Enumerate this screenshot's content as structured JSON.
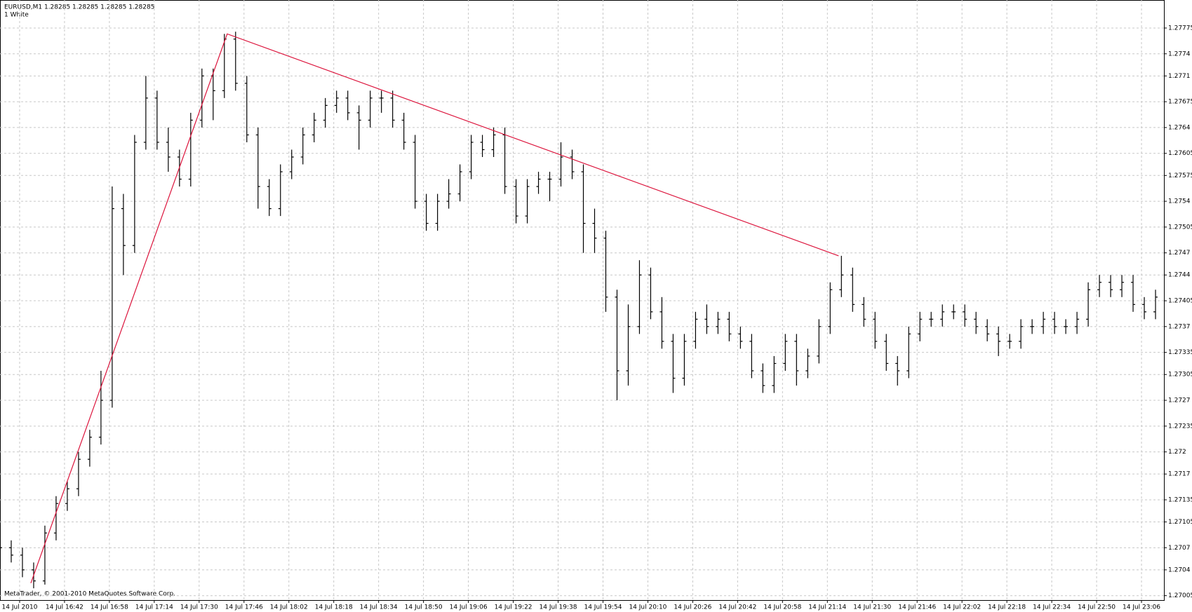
{
  "chart_data": {
    "type": "ohlc",
    "title": "EURUSD,M1  1.28285 1.28285 1.28285 1.28285",
    "subtitle": "1 White",
    "annotation": "MetaTrader, © 2001-2010 MetaQuotes Software Corp.",
    "color": "#000000",
    "grid": true,
    "xlim": [
      0,
      415
    ],
    "ylim": [
      1.26999,
      1.27813
    ],
    "yticks": [
      1.27775,
      1.2774,
      1.2771,
      1.27675,
      1.2764,
      1.27605,
      1.27575,
      1.2754,
      1.27505,
      1.2747,
      1.2744,
      1.27405,
      1.2737,
      1.27335,
      1.27305,
      1.2727,
      1.27235,
      1.272,
      1.2717,
      1.27135,
      1.27105,
      1.2707,
      1.2704,
      1.27005
    ],
    "xticks": [
      {
        "value": 7,
        "label": "14 Jul 2010"
      },
      {
        "value": 23,
        "label": "14 Jul 16:42"
      },
      {
        "value": 39,
        "label": "14 Jul 16:58"
      },
      {
        "value": 55,
        "label": "14 Jul 17:14"
      },
      {
        "value": 71,
        "label": "14 Jul 17:30"
      },
      {
        "value": 87,
        "label": "14 Jul 17:46"
      },
      {
        "value": 103,
        "label": "14 Jul 18:02"
      },
      {
        "value": 119,
        "label": "14 Jul 18:18"
      },
      {
        "value": 135,
        "label": "14 Jul 18:34"
      },
      {
        "value": 151,
        "label": "14 Jul 18:50"
      },
      {
        "value": 167,
        "label": "14 Jul 19:06"
      },
      {
        "value": 183,
        "label": "14 Jul 19:22"
      },
      {
        "value": 199,
        "label": "14 Jul 19:38"
      },
      {
        "value": 215,
        "label": "14 Jul 19:54"
      },
      {
        "value": 231,
        "label": "14 Jul 20:10"
      },
      {
        "value": 247,
        "label": "14 Jul 20:26"
      },
      {
        "value": 263,
        "label": "14 Jul 20:42"
      },
      {
        "value": 279,
        "label": "14 Jul 20:58"
      },
      {
        "value": 295,
        "label": "14 Jul 21:14"
      },
      {
        "value": 311,
        "label": "14 Jul 21:30"
      },
      {
        "value": 327,
        "label": "14 Jul 21:46"
      },
      {
        "value": 343,
        "label": "14 Jul 22:02"
      },
      {
        "value": 359,
        "label": "14 Jul 22:18"
      },
      {
        "value": 375,
        "label": "14 Jul 22:34"
      },
      {
        "value": 391,
        "label": "14 Jul 22:50"
      },
      {
        "value": 407,
        "label": "14 Jul 23:06"
      }
    ],
    "x": [
      0,
      4,
      8,
      12,
      16,
      20,
      24,
      28,
      32,
      36,
      40,
      44,
      48,
      52,
      56,
      60,
      64,
      68,
      72,
      76,
      80,
      84,
      88,
      92,
      96,
      100,
      104,
      108,
      112,
      116,
      120,
      124,
      128,
      132,
      136,
      140,
      144,
      148,
      152,
      156,
      160,
      164,
      168,
      172,
      176,
      180,
      184,
      188,
      192,
      196,
      200,
      204,
      208,
      212,
      216,
      220,
      224,
      228,
      232,
      236,
      240,
      244,
      248,
      252,
      256,
      260,
      264,
      268,
      272,
      276,
      280,
      284,
      288,
      292,
      296,
      300,
      304,
      308,
      312,
      316,
      320,
      324,
      328,
      332,
      336,
      340,
      344,
      348,
      352,
      356,
      360,
      364,
      368,
      372,
      376,
      380,
      384,
      388,
      392,
      396,
      400,
      404,
      408,
      412
    ],
    "open": [
      1.2708,
      1.2707,
      1.2706,
      1.2704,
      1.27025,
      1.2709,
      1.2713,
      1.2715,
      1.2719,
      1.2722,
      1.2727,
      1.2753,
      1.2748,
      1.2762,
      1.2768,
      1.2762,
      1.276,
      1.2757,
      1.2765,
      1.2771,
      1.2769,
      1.2776,
      1.277,
      1.2763,
      1.2756,
      1.2753,
      1.2758,
      1.276,
      1.2763,
      1.2765,
      1.2767,
      1.2768,
      1.2766,
      1.2765,
      1.2768,
      1.2768,
      1.2765,
      1.2762,
      1.2754,
      1.2751,
      1.2754,
      1.2755,
      1.2758,
      1.2762,
      1.2761,
      1.2763,
      1.2756,
      1.2752,
      1.2756,
      1.2757,
      1.2757,
      1.276,
      1.2758,
      1.2751,
      1.2749,
      1.2741,
      1.2731,
      1.2737,
      1.2744,
      1.2739,
      1.2735,
      1.273,
      1.2735,
      1.2738,
      1.2737,
      1.2738,
      1.2736,
      1.2735,
      1.2731,
      1.2729,
      1.2732,
      1.2735,
      1.2731,
      1.2733,
      1.2737,
      1.2742,
      1.2744,
      1.274,
      1.2738,
      1.2735,
      1.2732,
      1.2731,
      1.2736,
      1.2738,
      1.2738,
      1.2739,
      1.2739,
      1.2738,
      1.2737,
      1.2736,
      1.2735,
      1.2735,
      1.2737,
      1.2737,
      1.2738,
      1.2737,
      1.2737,
      1.2738,
      1.2742,
      1.2743,
      1.2742,
      1.2743,
      1.274,
      1.2739
    ],
    "high": [
      1.2709,
      1.2708,
      1.2707,
      1.2705,
      1.271,
      1.2714,
      1.2716,
      1.272,
      1.2723,
      1.2731,
      1.2756,
      1.2755,
      1.2763,
      1.2771,
      1.2769,
      1.2764,
      1.2761,
      1.2766,
      1.2772,
      1.2772,
      1.27767,
      1.2777,
      1.2771,
      1.2764,
      1.2757,
      1.2759,
      1.2761,
      1.2764,
      1.2766,
      1.2768,
      1.2769,
      1.2769,
      1.2767,
      1.2769,
      1.2769,
      1.2769,
      1.2766,
      1.2763,
      1.2755,
      1.2755,
      1.2757,
      1.2759,
      1.2763,
      1.2763,
      1.2764,
      1.2764,
      1.2757,
      1.2757,
      1.2758,
      1.2758,
      1.2762,
      1.2761,
      1.2759,
      1.2753,
      1.275,
      1.2742,
      1.274,
      1.2746,
      1.2745,
      1.2741,
      1.2736,
      1.2736,
      1.2739,
      1.274,
      1.2739,
      1.2739,
      1.2737,
      1.2736,
      1.2732,
      1.2733,
      1.2736,
      1.2736,
      1.2734,
      1.2738,
      1.2743,
      1.27466,
      1.2745,
      1.2741,
      1.2739,
      1.2736,
      1.2733,
      1.2737,
      1.2739,
      1.2739,
      1.274,
      1.274,
      1.274,
      1.2739,
      1.2738,
      1.2737,
      1.2736,
      1.2738,
      1.2738,
      1.2739,
      1.2739,
      1.2738,
      1.2739,
      1.2743,
      1.2744,
      1.2744,
      1.2744,
      1.2744,
      1.2741,
      1.2742
    ],
    "low": [
      1.2706,
      1.2705,
      1.2703,
      1.27015,
      1.2702,
      1.2708,
      1.2712,
      1.2714,
      1.2718,
      1.2721,
      1.2726,
      1.2744,
      1.2747,
      1.2761,
      1.2761,
      1.2758,
      1.2756,
      1.2756,
      1.2764,
      1.2765,
      1.2768,
      1.2769,
      1.2762,
      1.2753,
      1.2752,
      1.2752,
      1.2757,
      1.2759,
      1.2762,
      1.2764,
      1.2766,
      1.2765,
      1.2761,
      1.2764,
      1.2766,
      1.2764,
      1.2761,
      1.2753,
      1.275,
      1.275,
      1.2753,
      1.2754,
      1.2757,
      1.276,
      1.276,
      1.2755,
      1.2751,
      1.2751,
      1.2755,
      1.2754,
      1.2756,
      1.2757,
      1.2747,
      1.2747,
      1.2739,
      1.2727,
      1.2729,
      1.2736,
      1.2738,
      1.2734,
      1.2728,
      1.2729,
      1.2734,
      1.2736,
      1.2736,
      1.2735,
      1.2734,
      1.273,
      1.2728,
      1.2728,
      1.2731,
      1.2729,
      1.273,
      1.2732,
      1.2736,
      1.2741,
      1.2739,
      1.2737,
      1.2734,
      1.2731,
      1.2729,
      1.273,
      1.2735,
      1.2737,
      1.2737,
      1.2738,
      1.2737,
      1.2736,
      1.2735,
      1.2733,
      1.2734,
      1.2734,
      1.2736,
      1.2736,
      1.2736,
      1.2736,
      1.2736,
      1.2737,
      1.2741,
      1.2741,
      1.2741,
      1.2739,
      1.2738,
      1.2738
    ],
    "close": [
      1.2707,
      1.2706,
      1.2704,
      1.27025,
      1.2709,
      1.2713,
      1.2715,
      1.2719,
      1.2722,
      1.2727,
      1.2753,
      1.2748,
      1.2762,
      1.2768,
      1.2762,
      1.276,
      1.2757,
      1.2765,
      1.2771,
      1.2769,
      1.2776,
      1.277,
      1.2763,
      1.2756,
      1.2753,
      1.2758,
      1.276,
      1.2763,
      1.2765,
      1.2767,
      1.2768,
      1.2766,
      1.2765,
      1.2768,
      1.2768,
      1.2765,
      1.2762,
      1.2754,
      1.2751,
      1.2754,
      1.2755,
      1.2758,
      1.2762,
      1.2761,
      1.2763,
      1.2756,
      1.2752,
      1.2756,
      1.2757,
      1.2757,
      1.276,
      1.2758,
      1.2751,
      1.2749,
      1.2741,
      1.2731,
      1.2737,
      1.2744,
      1.2739,
      1.2735,
      1.273,
      1.2735,
      1.2738,
      1.2737,
      1.2738,
      1.2736,
      1.2735,
      1.2731,
      1.2729,
      1.2732,
      1.2735,
      1.2731,
      1.2733,
      1.2737,
      1.2742,
      1.2744,
      1.274,
      1.2738,
      1.2735,
      1.2732,
      1.2731,
      1.2736,
      1.2738,
      1.2738,
      1.2739,
      1.2739,
      1.2738,
      1.2737,
      1.2736,
      1.2735,
      1.2735,
      1.2737,
      1.2737,
      1.2738,
      1.2737,
      1.2737,
      1.2738,
      1.2742,
      1.2743,
      1.2742,
      1.2743,
      1.274,
      1.2739,
      1.2741
    ],
    "trendline": {
      "color": "#dc143c",
      "x": [
        11,
        81,
        299
      ],
      "values": [
        1.27022,
        1.27767,
        1.27466
      ]
    }
  }
}
